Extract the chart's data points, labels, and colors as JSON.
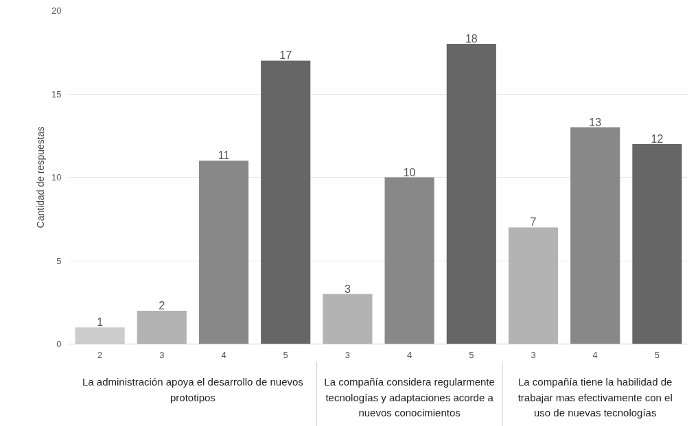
{
  "chart_data": {
    "type": "bar",
    "ylabel": "Cantidad de respuestas",
    "categories": [
      "2",
      "3",
      "4",
      "5",
      "3",
      "4",
      "5",
      "3",
      "4",
      "5"
    ],
    "values": [
      1,
      2,
      11,
      17,
      3,
      10,
      18,
      7,
      13,
      12
    ],
    "colors": [
      "#cccccc",
      "#b3b3b3",
      "#888888",
      "#666666",
      "#b3b3b3",
      "#888888",
      "#666666",
      "#b3b3b3",
      "#888888",
      "#666666"
    ],
    "annotations": [
      "La administración apoya el desarrollo de nuevos prototipos",
      "La compañía considera regularmente tecnologías y adaptaciones acorde a nuevos conocimientos",
      "La compañía tiene la habilidad de trabajar mas efectivamente con el uso de nuevas tecnologías"
    ],
    "ylim": [
      0,
      20
    ],
    "yticks": [
      0,
      5,
      10,
      15,
      20
    ],
    "grid": "y",
    "data_labels": true
  }
}
